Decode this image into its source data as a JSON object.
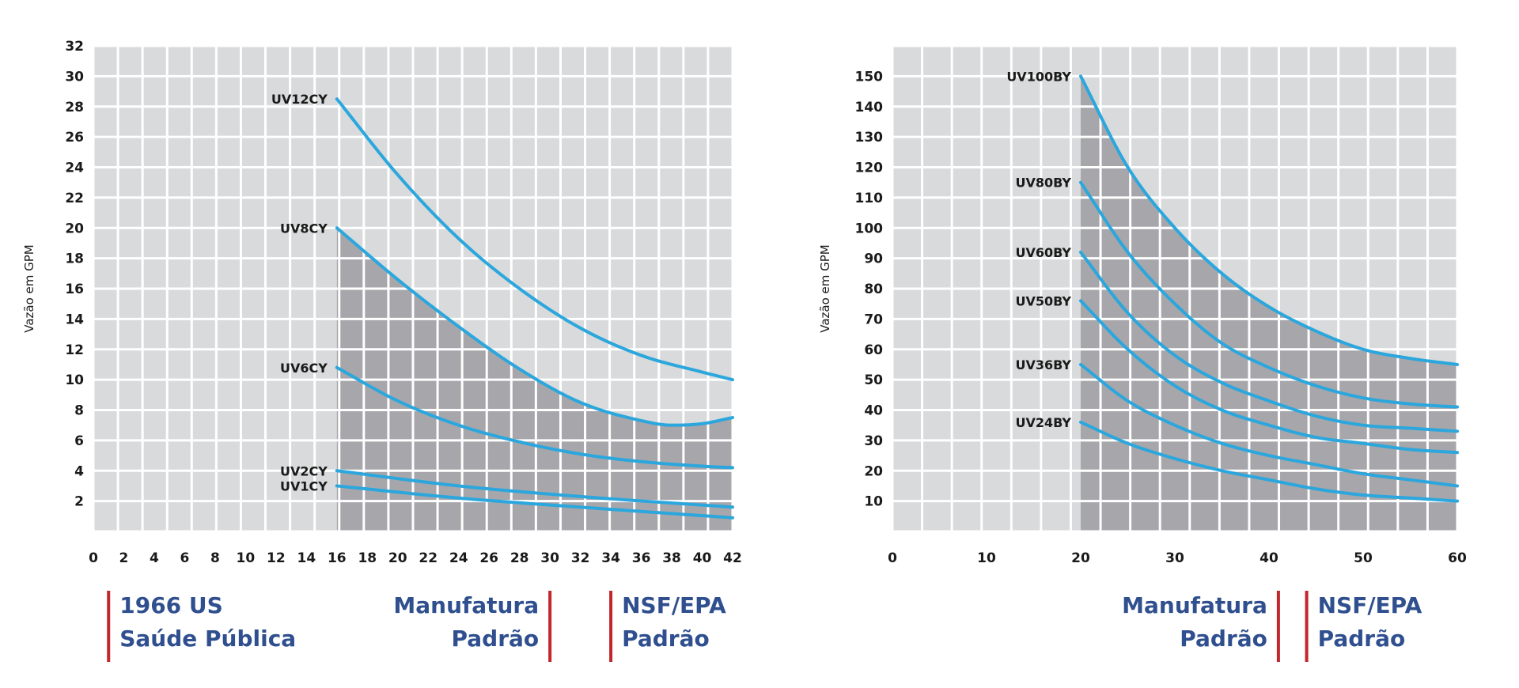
{
  "chart_data": [
    {
      "type": "line",
      "title": "",
      "xlabel": "",
      "ylabel": "Vazão em GPM",
      "xlim": [
        0,
        42
      ],
      "ylim": [
        0,
        32
      ],
      "xticks": [
        0,
        2,
        4,
        6,
        8,
        10,
        12,
        14,
        16,
        18,
        20,
        22,
        24,
        26,
        28,
        30,
        32,
        34,
        36,
        38,
        40,
        42
      ],
      "yticks": [
        2,
        4,
        6,
        8,
        10,
        12,
        14,
        16,
        18,
        20,
        22,
        24,
        26,
        28,
        30,
        32
      ],
      "grid": true,
      "shaded_region": {
        "x_start": 16,
        "upper_series": "UV8CY"
      },
      "series": [
        {
          "name": "UV12CY",
          "x": [
            16,
            20,
            24,
            28,
            32,
            36,
            40,
            42
          ],
          "y": [
            28.5,
            23.5,
            19.3,
            16.0,
            13.4,
            11.6,
            10.5,
            10.0
          ]
        },
        {
          "name": "UV8CY",
          "x": [
            16,
            20,
            24,
            28,
            32,
            36,
            38,
            40,
            42
          ],
          "y": [
            20.0,
            16.6,
            13.5,
            10.7,
            8.5,
            7.3,
            7.0,
            7.1,
            7.5
          ]
        },
        {
          "name": "UV6CY",
          "x": [
            16,
            20,
            24,
            28,
            32,
            36,
            40,
            42
          ],
          "y": [
            10.8,
            8.6,
            7.0,
            5.9,
            5.1,
            4.6,
            4.3,
            4.2
          ]
        },
        {
          "name": "UV2CY",
          "x": [
            16,
            24,
            32,
            42
          ],
          "y": [
            4.0,
            3.0,
            2.3,
            1.6
          ]
        },
        {
          "name": "UV1CY",
          "x": [
            16,
            24,
            32,
            42
          ],
          "y": [
            3.0,
            2.2,
            1.6,
            0.9
          ]
        }
      ],
      "standards": [
        {
          "x": 1,
          "align": "left",
          "line1": "1966 US",
          "line2": "Saúde Pública"
        },
        {
          "x": 30,
          "align": "right",
          "line1": "Manufatura",
          "line2": "Padrão"
        },
        {
          "x": 34,
          "align": "left",
          "line1": "NSF/EPA",
          "line2": "Padrão"
        }
      ]
    },
    {
      "type": "line",
      "title": "",
      "xlabel": "",
      "ylabel": "Vazão em GPM",
      "xlim": [
        0,
        60
      ],
      "ylim": [
        0,
        160
      ],
      "xticks": [
        0,
        10,
        20,
        30,
        40,
        50,
        60
      ],
      "yticks": [
        10,
        20,
        30,
        40,
        50,
        60,
        70,
        80,
        90,
        100,
        110,
        120,
        130,
        140,
        150
      ],
      "grid": true,
      "shaded_region": {
        "x_start": 20,
        "upper_series": "UV100BY"
      },
      "series": [
        {
          "name": "UV100BY",
          "x": [
            20,
            25,
            30,
            35,
            40,
            45,
            50,
            55,
            60
          ],
          "y": [
            150,
            120,
            100,
            85,
            74,
            66,
            60,
            57,
            55
          ]
        },
        {
          "name": "UV80BY",
          "x": [
            20,
            25,
            30,
            35,
            40,
            45,
            50,
            55,
            60
          ],
          "y": [
            115,
            92,
            75,
            62,
            54,
            48,
            44,
            42,
            41
          ]
        },
        {
          "name": "UV60BY",
          "x": [
            20,
            25,
            30,
            35,
            40,
            45,
            50,
            55,
            60
          ],
          "y": [
            92,
            72,
            58,
            49,
            43,
            38,
            35,
            34,
            33
          ]
        },
        {
          "name": "UV50BY",
          "x": [
            20,
            25,
            30,
            35,
            40,
            45,
            50,
            55,
            60
          ],
          "y": [
            76,
            60,
            48,
            40,
            35,
            31,
            29,
            27,
            26
          ]
        },
        {
          "name": "UV36BY",
          "x": [
            20,
            25,
            30,
            35,
            40,
            45,
            50,
            55,
            60
          ],
          "y": [
            55,
            43,
            35,
            29,
            25,
            22,
            19,
            17,
            15
          ]
        },
        {
          "name": "UV24BY",
          "x": [
            20,
            25,
            30,
            35,
            40,
            45,
            50,
            55,
            60
          ],
          "y": [
            36,
            29,
            24,
            20,
            17,
            14,
            12,
            11,
            10
          ]
        }
      ],
      "standards": [
        {
          "x": 41,
          "align": "right",
          "line1": "Manufatura",
          "line2": "Padrão"
        },
        {
          "x": 44,
          "align": "left",
          "line1": "NSF/EPA",
          "line2": "Padrão"
        }
      ]
    }
  ],
  "colors": {
    "line": "#2ba7dd",
    "plot_bg": "#d8dadb",
    "shade": "#a7a6ab",
    "grid": "#ffffff",
    "marker": "#c1272d",
    "standard_text": "#2f4f8f"
  }
}
